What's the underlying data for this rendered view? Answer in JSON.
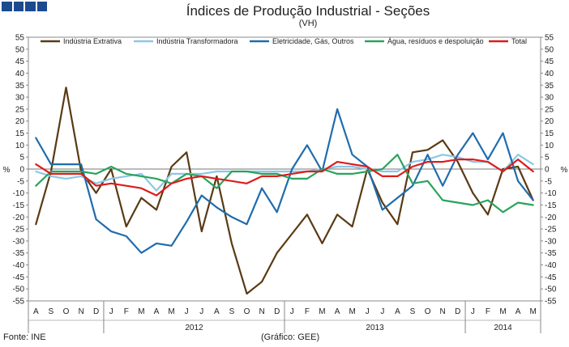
{
  "header": {
    "title": "Índices de Produção Industrial - Seções",
    "subtitle": "(VH)"
  },
  "footer": {
    "source": "Fonte: INE",
    "credit": "(Gráfico: GEE)"
  },
  "chart_data": {
    "type": "line",
    "title": "Índices de Produção Industrial - Seções",
    "subtitle": "(VH)",
    "ylabel_left": "%",
    "ylabel_right": "%",
    "ylim": [
      -55,
      55
    ],
    "yticks": [
      55,
      50,
      45,
      40,
      35,
      30,
      25,
      20,
      15,
      10,
      5,
      0,
      -5,
      -10,
      -15,
      -20,
      -25,
      -30,
      -35,
      -40,
      -45,
      -50,
      -55
    ],
    "categories": [
      "A",
      "S",
      "O",
      "N",
      "D",
      "J",
      "F",
      "M",
      "A",
      "M",
      "J",
      "J",
      "A",
      "S",
      "O",
      "N",
      "D",
      "J",
      "F",
      "M",
      "A",
      "M",
      "J",
      "J",
      "A",
      "S",
      "O",
      "N",
      "D",
      "J",
      "F",
      "M",
      "A",
      "M"
    ],
    "year_labels": [
      {
        "label": "2012",
        "start": 5,
        "end": 16
      },
      {
        "label": "2013",
        "start": 17,
        "end": 28
      },
      {
        "label": "2014",
        "start": 29,
        "end": 33
      }
    ],
    "legend_position": "top",
    "series": [
      {
        "name": "Indústria Extrativa",
        "color": "#5a3a14",
        "values": [
          -23,
          -1,
          34,
          -1,
          -10,
          0,
          -24,
          -12,
          -17,
          1,
          7,
          -26,
          -3,
          -31,
          -52,
          -47,
          -35,
          -27,
          -19,
          -31,
          -19,
          -24,
          0,
          -14,
          -23,
          7,
          8,
          12,
          3,
          -10,
          -19,
          0,
          1,
          -13
        ]
      },
      {
        "name": "Indústria Transformadora",
        "color": "#8cc7e6",
        "values": [
          -1,
          -3,
          -4,
          -3,
          -6,
          -4,
          -3,
          -2,
          -9,
          -2,
          -2,
          -2,
          -1,
          -1,
          -1,
          -1,
          -1,
          -1,
          -1,
          0,
          1,
          1,
          0,
          -1,
          -1,
          3,
          4,
          6,
          5,
          3,
          3,
          -1,
          6,
          2
        ]
      },
      {
        "name": "Eletricidade, Gás, Outros",
        "color": "#1f6cad",
        "values": [
          13,
          2,
          2,
          2,
          -21,
          -26,
          -28,
          -35,
          -31,
          -32,
          -22,
          -11,
          -16,
          -20,
          -23,
          -8,
          -18,
          0,
          10,
          -1,
          25,
          6,
          1,
          -17,
          -12,
          -7,
          6,
          -7,
          6,
          15,
          4,
          15,
          -5,
          -13
        ]
      },
      {
        "name": "Água, resíduos e despoluição",
        "color": "#2aa35c",
        "values": [
          -7,
          -1,
          -1,
          -1,
          -2,
          1,
          -2,
          -3,
          -4,
          -6,
          -2,
          -3,
          -8,
          -1,
          -1,
          -2,
          -2,
          -4,
          -4,
          0,
          -2,
          -2,
          -1,
          0,
          6,
          -6,
          -5,
          -13,
          -14,
          -15,
          -13,
          -18,
          -14,
          -15
        ]
      },
      {
        "name": "Total",
        "color": "#dd1c1c",
        "values": [
          2,
          -2,
          -2,
          -2,
          -7,
          -6,
          -7,
          -8,
          -11,
          -6,
          -4,
          -3,
          -4,
          -5,
          -6,
          -3,
          -3,
          -2,
          -1,
          -1,
          3,
          2,
          1,
          -3,
          -3,
          1,
          3,
          3,
          4,
          4,
          3,
          -1,
          4,
          -1
        ]
      }
    ]
  }
}
